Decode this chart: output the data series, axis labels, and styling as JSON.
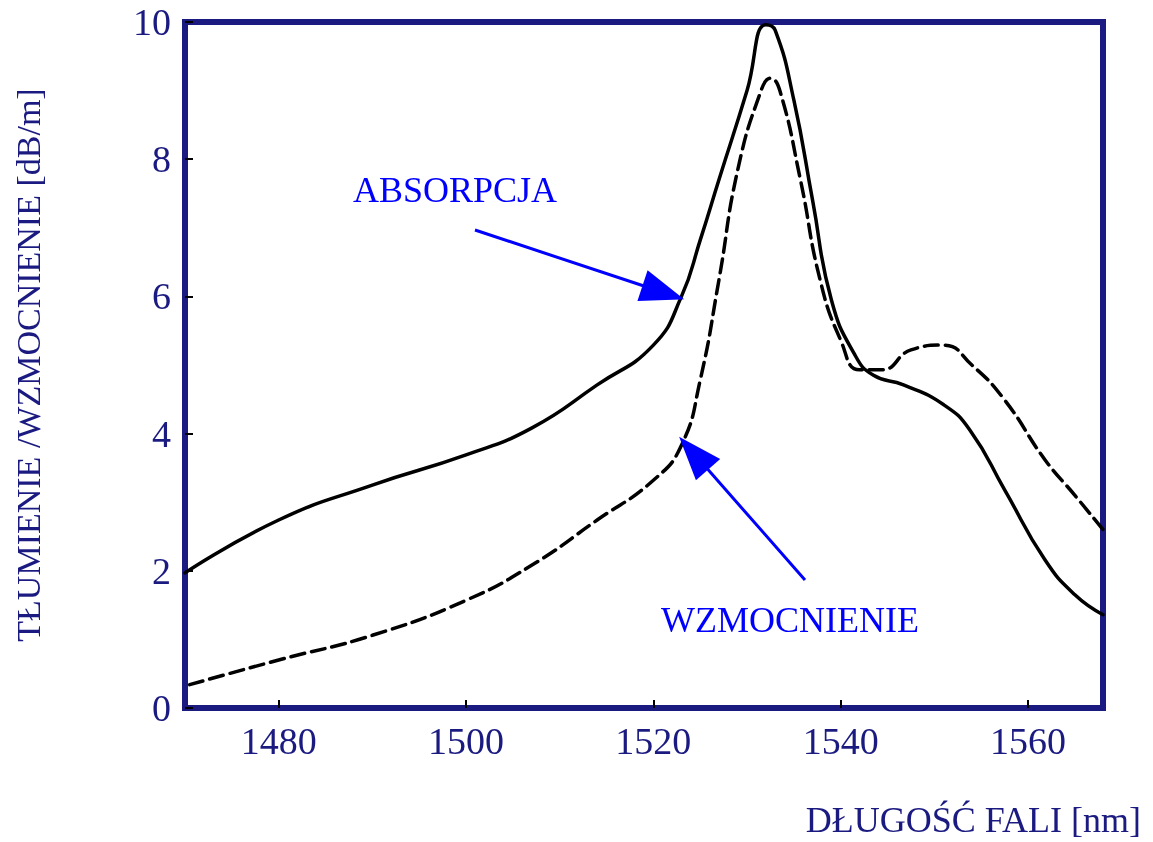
{
  "chart_data": {
    "type": "line",
    "xlabel": "DŁUGOŚĆ FALI [nm]",
    "ylabel": "TŁUMIENIE /WZMOCNIENIE [dB/m]",
    "xlim": [
      1470,
      1568
    ],
    "xticks": [
      1480,
      1500,
      1520,
      1540,
      1560
    ],
    "ylim": [
      0,
      10
    ],
    "yticks": [
      0,
      2,
      4,
      6,
      8,
      10
    ],
    "grid": false,
    "marker": "none",
    "series": [
      {
        "color": "#000000",
        "line_style": "solid",
        "x": [
          1470,
          1480,
          1490,
          1500,
          1507,
          1514,
          1520,
          1523,
          1525,
          1527,
          1530,
          1532,
          1533,
          1535,
          1537,
          1539,
          1541.5,
          1543.5,
          1546.7,
          1551,
          1553.8,
          1557.5,
          1561.8,
          1565,
          1568
        ],
        "values": [
          1.97,
          2.74,
          3.25,
          3.69,
          4.08,
          4.71,
          5.29,
          6.0,
          6.82,
          7.7,
          9.0,
          9.96,
          9.88,
          8.86,
          7.4,
          5.95,
          5.15,
          4.85,
          4.71,
          4.42,
          4.05,
          3.18,
          2.16,
          1.65,
          1.36
        ]
      },
      {
        "color": "#000000",
        "line_style": "dashed",
        "x": [
          1470.5,
          1480,
          1490,
          1500,
          1507,
          1514,
          1520,
          1523,
          1525,
          1527,
          1529,
          1531.5,
          1532.5,
          1533.5,
          1535.7,
          1537.8,
          1540,
          1542,
          1544.4,
          1547.5,
          1551,
          1554,
          1557.5,
          1561.8,
          1565,
          1568
        ],
        "values": [
          0.34,
          0.7,
          1.06,
          1.57,
          2.08,
          2.74,
          3.32,
          3.83,
          4.78,
          6.24,
          7.84,
          9.0,
          9.18,
          9.0,
          7.7,
          6.24,
          5.36,
          4.93,
          4.93,
          5.22,
          5.29,
          5.0,
          4.49,
          3.62,
          3.1,
          2.6
        ]
      }
    ],
    "annotations": [
      "ABSORPCJA",
      "WZMOCNIENIE"
    ]
  }
}
